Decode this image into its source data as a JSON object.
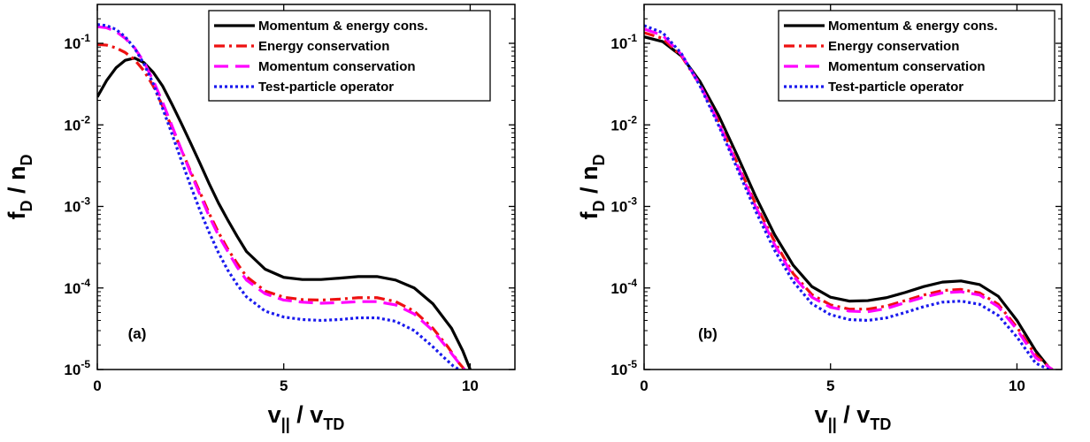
{
  "chart_data": [
    {
      "type": "line",
      "panel_label": "(a)",
      "xlabel": {
        "main": "v",
        "main_sub": "||",
        "sep": " / ",
        "den": "v",
        "den_sub": "TD"
      },
      "ylabel": {
        "main": "f",
        "main_sub": "D",
        "sep": " / ",
        "den": "n",
        "den_sub": "D"
      },
      "xlim": [
        0,
        11.2
      ],
      "ylim": [
        1e-05,
        0.3
      ],
      "yscale": "log",
      "xticks": [
        0,
        5,
        10
      ],
      "yticks": [
        {
          "value": 1e-05,
          "base": "10",
          "exp": "-5"
        },
        {
          "value": 0.0001,
          "base": "10",
          "exp": "-4"
        },
        {
          "value": 0.001,
          "base": "10",
          "exp": "-3"
        },
        {
          "value": 0.01,
          "base": "10",
          "exp": "-2"
        },
        {
          "value": 0.1,
          "base": "10",
          "exp": "-1"
        }
      ],
      "legend_position": "top-right",
      "series": [
        {
          "name": "Momentum & energy cons.",
          "color": "#000000",
          "dash": "solid",
          "x": [
            0,
            0.25,
            0.5,
            0.75,
            1.0,
            1.25,
            1.5,
            1.75,
            2.0,
            2.25,
            2.5,
            2.75,
            3.0,
            3.25,
            3.5,
            3.75,
            4.0,
            4.5,
            5.0,
            5.5,
            6.0,
            6.5,
            7.0,
            7.5,
            8.0,
            8.5,
            9.0,
            9.5,
            9.8,
            10.0
          ],
          "y": [
            0.022,
            0.035,
            0.05,
            0.062,
            0.066,
            0.058,
            0.044,
            0.03,
            0.018,
            0.0105,
            0.006,
            0.0034,
            0.0019,
            0.0011,
            0.00068,
            0.00043,
            0.00028,
            0.00017,
            0.000135,
            0.000127,
            0.000127,
            0.000132,
            0.000138,
            0.000138,
            0.000125,
            0.0001,
            6.4e-05,
            3.2e-05,
            1.7e-05,
            1e-05
          ]
        },
        {
          "name": "Energy conservation",
          "color": "#ee1111",
          "dash": "12,5,3,5",
          "x": [
            0,
            0.25,
            0.5,
            0.75,
            1.0,
            1.25,
            1.5,
            1.75,
            2.0,
            2.25,
            2.5,
            2.75,
            3.0,
            3.25,
            3.5,
            3.75,
            4.0,
            4.5,
            5.0,
            5.5,
            6.0,
            6.5,
            7.0,
            7.5,
            8.0,
            8.5,
            9.0,
            9.4,
            9.7,
            9.85
          ],
          "y": [
            0.097,
            0.095,
            0.088,
            0.077,
            0.063,
            0.046,
            0.03,
            0.017,
            0.0093,
            0.005,
            0.0027,
            0.0015,
            0.00082,
            0.00048,
            0.0003,
            0.0002,
            0.000138,
            9.2e-05,
            7.7e-05,
            7.2e-05,
            7.1e-05,
            7.3e-05,
            7.6e-05,
            7.6e-05,
            6.8e-05,
            5.2e-05,
            3.2e-05,
            1.9e-05,
            1.2e-05,
            1e-05
          ]
        },
        {
          "name": "Momentum conservation",
          "color": "#ff00ff",
          "dash": "16,8",
          "x": [
            0,
            0.25,
            0.5,
            0.75,
            1.0,
            1.25,
            1.5,
            1.75,
            2.0,
            2.25,
            2.5,
            2.75,
            3.0,
            3.25,
            3.5,
            3.75,
            4.0,
            4.5,
            5.0,
            5.5,
            6.0,
            6.5,
            7.0,
            7.5,
            8.0,
            8.5,
            9.0,
            9.4,
            9.7,
            9.85
          ],
          "y": [
            0.16,
            0.155,
            0.14,
            0.115,
            0.088,
            0.059,
            0.035,
            0.019,
            0.0098,
            0.005,
            0.0026,
            0.0014,
            0.00076,
            0.00044,
            0.00028,
            0.00018,
            0.000125,
            8.5e-05,
            7.1e-05,
            6.7e-05,
            6.5e-05,
            6.6e-05,
            6.8e-05,
            6.8e-05,
            6.2e-05,
            4.8e-05,
            3e-05,
            1.8e-05,
            1.2e-05,
            1e-05
          ]
        },
        {
          "name": "Test-particle operator",
          "color": "#1a1aee",
          "dash": "3,3",
          "x": [
            0,
            0.25,
            0.5,
            0.75,
            1.0,
            1.25,
            1.5,
            1.75,
            2.0,
            2.25,
            2.5,
            2.75,
            3.0,
            3.25,
            3.5,
            3.75,
            4.0,
            4.5,
            5.0,
            5.5,
            6.0,
            6.5,
            7.0,
            7.5,
            8.0,
            8.5,
            9.0,
            9.3,
            9.55,
            9.7
          ],
          "y": [
            0.17,
            0.165,
            0.148,
            0.12,
            0.087,
            0.056,
            0.032,
            0.016,
            0.0078,
            0.0037,
            0.0018,
            0.0009,
            0.00048,
            0.00027,
            0.000165,
            0.00011,
            7.8e-05,
            5.2e-05,
            4.4e-05,
            4.1e-05,
            4e-05,
            4.1e-05,
            4.3e-05,
            4.3e-05,
            3.9e-05,
            3e-05,
            1.9e-05,
            1.4e-05,
            1.1e-05,
            1e-05
          ]
        }
      ]
    },
    {
      "type": "line",
      "panel_label": "(b)",
      "xlabel": {
        "main": "v",
        "main_sub": "||",
        "sep": " / ",
        "den": "v",
        "den_sub": "TD"
      },
      "ylabel": {
        "main": "f",
        "main_sub": "D",
        "sep": " / ",
        "den": "n",
        "den_sub": "D"
      },
      "xlim": [
        0,
        11.2
      ],
      "ylim": [
        1e-05,
        0.3
      ],
      "yscale": "log",
      "xticks": [
        0,
        5,
        10
      ],
      "yticks": [
        {
          "value": 1e-05,
          "base": "10",
          "exp": "-5"
        },
        {
          "value": 0.0001,
          "base": "10",
          "exp": "-4"
        },
        {
          "value": 0.001,
          "base": "10",
          "exp": "-3"
        },
        {
          "value": 0.01,
          "base": "10",
          "exp": "-2"
        },
        {
          "value": 0.1,
          "base": "10",
          "exp": "-1"
        }
      ],
      "legend_position": "top-right",
      "series": [
        {
          "name": "Momentum & energy cons.",
          "color": "#000000",
          "dash": "solid",
          "x": [
            0,
            0.5,
            1.0,
            1.5,
            2.0,
            2.5,
            3.0,
            3.5,
            4.0,
            4.5,
            5.0,
            5.5,
            6.0,
            6.5,
            7.0,
            7.5,
            8.0,
            8.5,
            9.0,
            9.5,
            10.0,
            10.5,
            10.9
          ],
          "y": [
            0.12,
            0.105,
            0.07,
            0.034,
            0.013,
            0.0042,
            0.0013,
            0.00045,
            0.00019,
            0.000104,
            7.7e-05,
            6.9e-05,
            7e-05,
            7.6e-05,
            8.8e-05,
            0.000104,
            0.000118,
            0.000122,
            0.00011,
            7.9e-05,
            4e-05,
            1.7e-05,
            1e-05
          ]
        },
        {
          "name": "Energy conservation",
          "color": "#ee1111",
          "dash": "12,5,3,5",
          "x": [
            0,
            0.5,
            1.0,
            1.5,
            2.0,
            2.5,
            3.0,
            3.5,
            4.0,
            4.5,
            5.0,
            5.5,
            6.0,
            6.5,
            7.0,
            7.5,
            8.0,
            8.5,
            9.0,
            9.5,
            10.0,
            10.5,
            10.95
          ],
          "y": [
            0.135,
            0.115,
            0.07,
            0.031,
            0.011,
            0.0034,
            0.00105,
            0.00037,
            0.00015,
            8.3e-05,
            6.2e-05,
            5.5e-05,
            5.5e-05,
            6e-05,
            7e-05,
            8.2e-05,
            9.3e-05,
            9.6e-05,
            8.7e-05,
            6.3e-05,
            3.3e-05,
            1.5e-05,
            1e-05
          ]
        },
        {
          "name": "Momentum conservation",
          "color": "#ff00ff",
          "dash": "16,8",
          "x": [
            0,
            0.5,
            1.0,
            1.5,
            2.0,
            2.5,
            3.0,
            3.5,
            4.0,
            4.5,
            5.0,
            5.5,
            6.0,
            6.5,
            7.0,
            7.5,
            8.0,
            8.5,
            9.0,
            9.5,
            10.0,
            10.5,
            10.95
          ],
          "y": [
            0.15,
            0.125,
            0.073,
            0.031,
            0.0105,
            0.0032,
            0.00098,
            0.00034,
            0.00014,
            7.7e-05,
            5.8e-05,
            5.2e-05,
            5.1e-05,
            5.6e-05,
            6.6e-05,
            7.7e-05,
            8.7e-05,
            9e-05,
            8.2e-05,
            5.9e-05,
            3.1e-05,
            1.4e-05,
            1e-05
          ]
        },
        {
          "name": "Test-particle operator",
          "color": "#1a1aee",
          "dash": "3,3",
          "x": [
            0,
            0.5,
            1.0,
            1.5,
            2.0,
            2.5,
            3.0,
            3.5,
            4.0,
            4.5,
            5.0,
            5.5,
            6.0,
            6.5,
            7.0,
            7.5,
            8.0,
            8.5,
            9.0,
            9.5,
            10.0,
            10.5,
            10.85
          ],
          "y": [
            0.165,
            0.135,
            0.075,
            0.03,
            0.0098,
            0.0029,
            0.00086,
            0.00029,
            0.00012,
            6.4e-05,
            4.7e-05,
            4.1e-05,
            4e-05,
            4.3e-05,
            5e-05,
            5.9e-05,
            6.7e-05,
            6.9e-05,
            6.3e-05,
            4.6e-05,
            2.5e-05,
            1.2e-05,
            1e-05
          ]
        }
      ]
    }
  ]
}
